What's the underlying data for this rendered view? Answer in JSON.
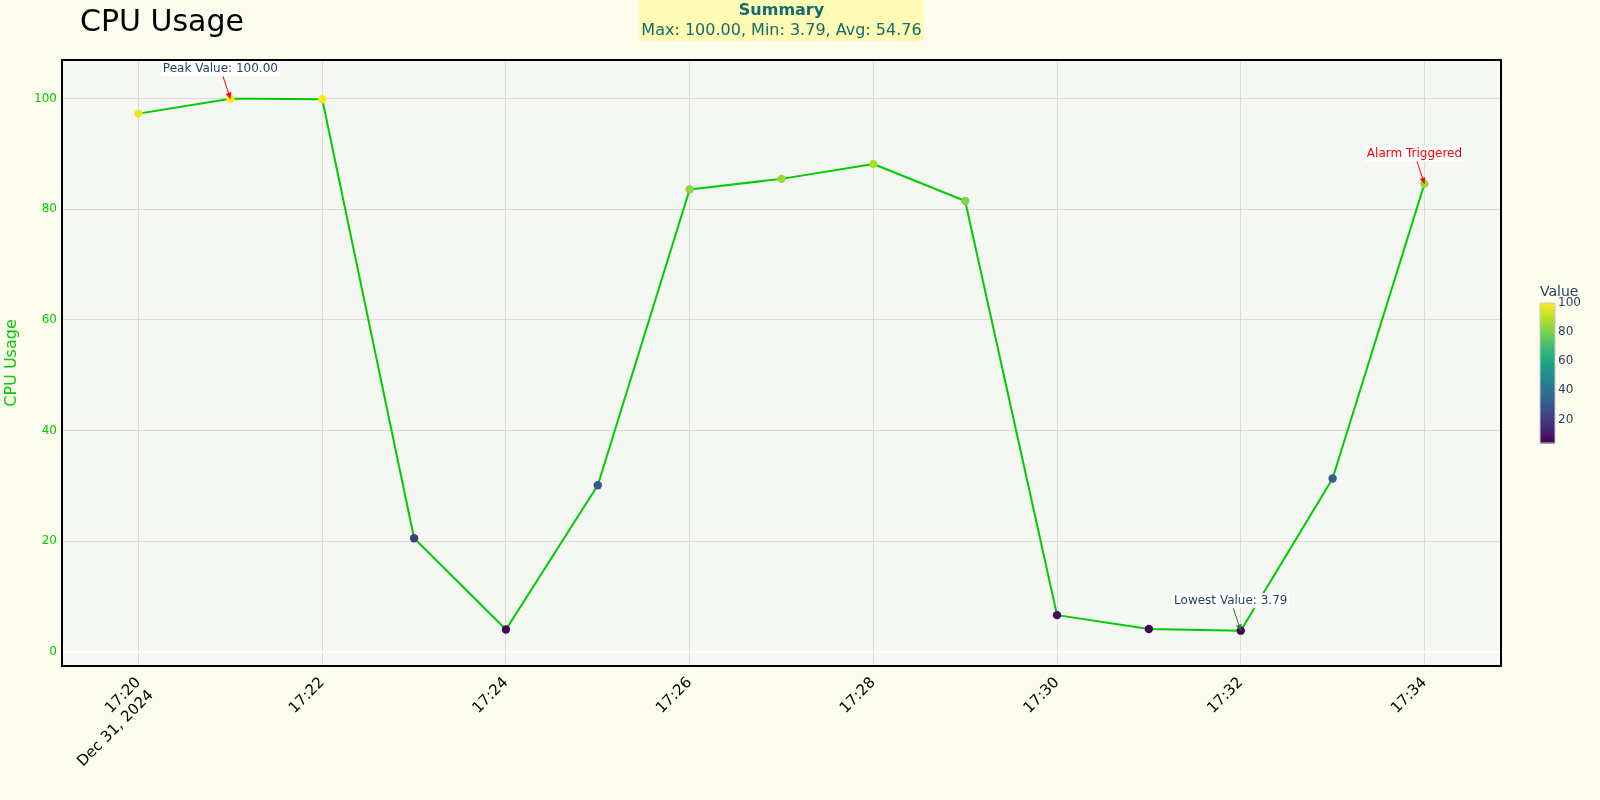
{
  "chart_data": {
    "type": "line",
    "title": "CPU Usage",
    "ylabel": "CPU Usage",
    "clabel": "Value",
    "x": [
      "2024-12-31T17:20",
      "2024-12-31T17:21",
      "2024-12-31T17:22",
      "2024-12-31T17:23",
      "2024-12-31T17:24",
      "2024-12-31T17:25",
      "2024-12-31T17:26",
      "2024-12-31T17:27",
      "2024-12-31T17:28",
      "2024-12-31T17:29",
      "2024-12-31T17:30",
      "2024-12-31T17:31",
      "2024-12-31T17:32",
      "2024-12-31T17:33",
      "2024-12-31T17:34"
    ],
    "values": [
      97.3,
      100.0,
      99.9,
      20.5,
      4.0,
      30.1,
      83.6,
      85.5,
      88.2,
      81.5,
      6.6,
      4.1,
      3.79,
      31.3,
      84.6
    ],
    "color": "#00cc00",
    "marker": "circle",
    "line_style": "solid",
    "grid": true,
    "xlim": [
      "2024-12-31T17:19:10",
      "2024-12-31T17:34:50"
    ],
    "xticks": [
      {
        "value": "2024-12-31T17:20",
        "label": "17:20"
      },
      {
        "value": "2024-12-31T17:22",
        "label": "17:22"
      },
      {
        "value": "2024-12-31T17:24",
        "label": "17:24"
      },
      {
        "value": "2024-12-31T17:26",
        "label": "17:26"
      },
      {
        "value": "2024-12-31T17:28",
        "label": "17:28"
      },
      {
        "value": "2024-12-31T17:30",
        "label": "17:30"
      },
      {
        "value": "2024-12-31T17:32",
        "label": "17:32"
      },
      {
        "value": "2024-12-31T17:34",
        "label": "17:34"
      }
    ],
    "ylim": [
      -2.6,
      107
    ],
    "yticks": [
      0,
      20,
      40,
      60,
      80,
      100
    ],
    "clim": [
      3.79,
      100
    ],
    "cticks": [
      20,
      40,
      60,
      80,
      100
    ],
    "annotations": [
      "Summary",
      "Max: 100.00, Min: 3.79, Avg: 54.76",
      "Dec 31, 2024",
      {
        "text": "Peak Value: 100.00",
        "x": "2024-12-31T17:21",
        "y": 100
      },
      {
        "text": "Lowest Value: 3.79",
        "x": "2024-12-31T17:32",
        "y": 3.79
      },
      {
        "text": "Alarm Triggered",
        "x": "2024-12-31T17:34",
        "y": 84.6
      }
    ]
  }
}
